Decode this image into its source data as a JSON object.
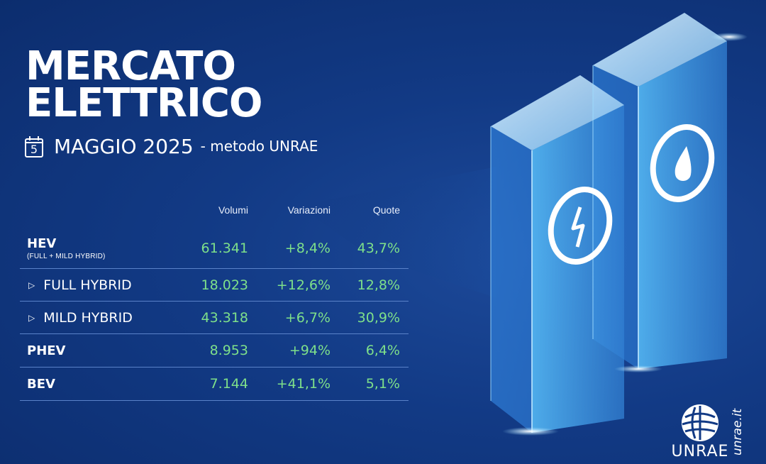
{
  "header": {
    "title_line1": "MERCATO",
    "title_line2": "ELETTRICO",
    "calendar_day": "5",
    "period": "MAGGIO 2025",
    "method": "- metodo UNRAE"
  },
  "table": {
    "columns": [
      "Volumi",
      "Variazioni",
      "Quote"
    ],
    "rows": [
      {
        "label": "HEV",
        "note": "(FULL + MILD HYBRID)",
        "volumi": "61.341",
        "variazioni": "+8,4%",
        "quote": "43,7%"
      },
      {
        "label": "FULL HYBRID",
        "volumi": "18.023",
        "variazioni": "+12,6%",
        "quote": "12,8%"
      },
      {
        "label": "MILD HYBRID",
        "volumi": "43.318",
        "variazioni": "+6,7%",
        "quote": "30,9%"
      },
      {
        "label": "PHEV",
        "volumi": "8.953",
        "variazioni": "+94%",
        "quote": "6,4%"
      },
      {
        "label": "BEV",
        "volumi": "7.144",
        "variazioni": "+41,1%",
        "quote": "5,1%"
      }
    ]
  },
  "icons": [
    "calendar-icon",
    "play-outline-icon",
    "electric-plug-icon",
    "fuel-drop-icon",
    "unrae-globe-icon"
  ],
  "brand": {
    "logo_text": "UNRAE",
    "website": "unrae.it"
  },
  "colors": {
    "background": "#123a85",
    "positive_value": "#7ee08a",
    "divider": "#5a82c9",
    "crystal": "#7fd3ff"
  }
}
